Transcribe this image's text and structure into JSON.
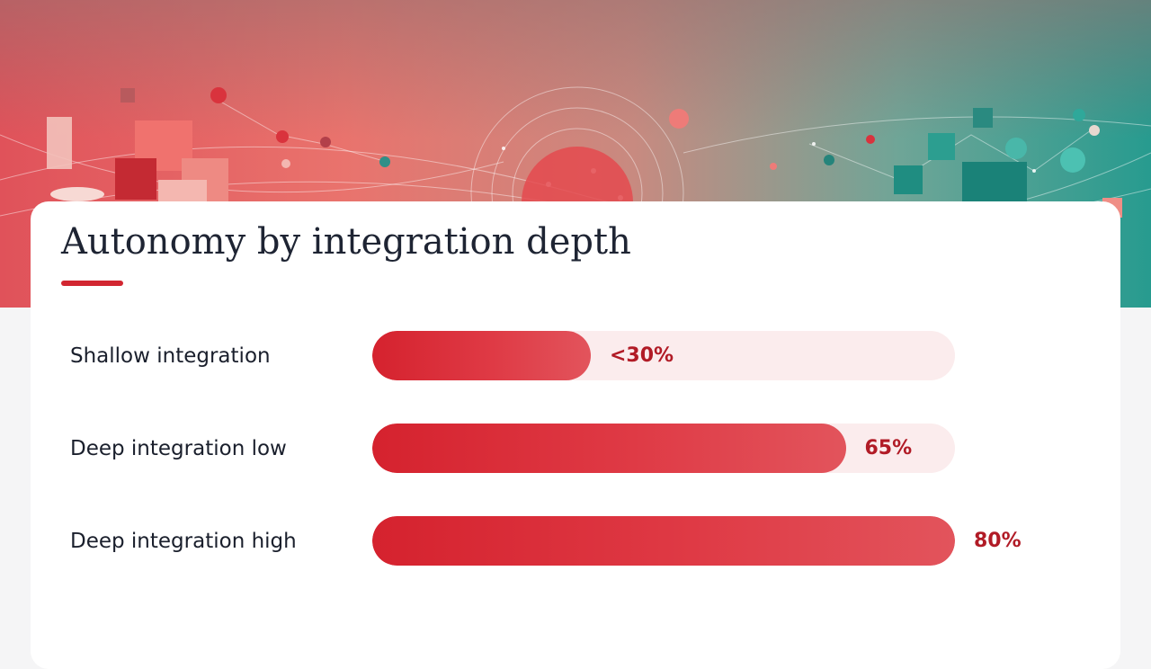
{
  "slide": {
    "title": "Autonomy by integration depth",
    "accent_color": "#d22631"
  },
  "chart_data": {
    "type": "bar",
    "orientation": "horizontal",
    "title": "Autonomy by integration depth",
    "categories": [
      "Shallow integration",
      "Deep integration low",
      "Deep integration high"
    ],
    "values": [
      30,
      65,
      80
    ],
    "value_labels": [
      "<30%",
      "65%",
      "80%"
    ],
    "xlim": [
      0,
      80
    ],
    "grid": false,
    "bar_color": "#d5222e",
    "track_color": "#fbeced"
  }
}
